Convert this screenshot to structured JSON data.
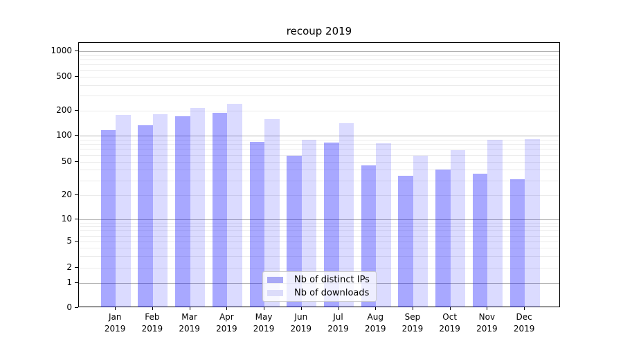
{
  "title": "recoup 2019",
  "legend": {
    "items": [
      {
        "label": "Nb of distinct IPs",
        "color": "#a9a9f6"
      },
      {
        "label": "Nb of downloads",
        "color": "#dcdcfa"
      }
    ]
  },
  "y_axis": {
    "tick_labels": [
      "0",
      "1",
      "2",
      "5",
      "10",
      "20",
      "50",
      "100",
      "200",
      "500",
      "1000"
    ]
  },
  "x_axis": {
    "tick_labels": [
      "Jan 2019",
      "Feb 2019",
      "Mar 2019",
      "Apr 2019",
      "May 2019",
      "Jun 2019",
      "Jul 2019",
      "Aug 2019",
      "Sep 2019",
      "Oct 2019",
      "Nov 2019",
      "Dec 2019"
    ]
  },
  "chart_data": {
    "type": "bar",
    "title": "recoup 2019",
    "categories": [
      "Jan 2019",
      "Feb 2019",
      "Mar 2019",
      "Apr 2019",
      "May 2019",
      "Jun 2019",
      "Jul 2019",
      "Aug 2019",
      "Sep 2019",
      "Oct 2019",
      "Nov 2019",
      "Dec 2019"
    ],
    "series": [
      {
        "name": "Nb of distinct IPs",
        "color": "#a9a9f6",
        "fill": "rgba(0,0,255,0.34)",
        "values": [
          116,
          134,
          172,
          189,
          84,
          59,
          83,
          45,
          34,
          40,
          36,
          31
        ]
      },
      {
        "name": "Nb of downloads",
        "color": "#dcdcfa",
        "fill": "rgba(0,0,255,0.14)",
        "values": [
          179,
          182,
          216,
          242,
          160,
          90,
          141,
          82,
          58,
          68,
          90,
          91
        ]
      }
    ],
    "xlabel": "",
    "ylabel": "",
    "yscale": "symlog",
    "yticks": [
      0,
      1,
      2,
      5,
      10,
      20,
      50,
      100,
      200,
      500,
      1000
    ],
    "ylim": [
      0,
      1260
    ],
    "grid": "horizontal",
    "legend_position": "lower-center"
  }
}
